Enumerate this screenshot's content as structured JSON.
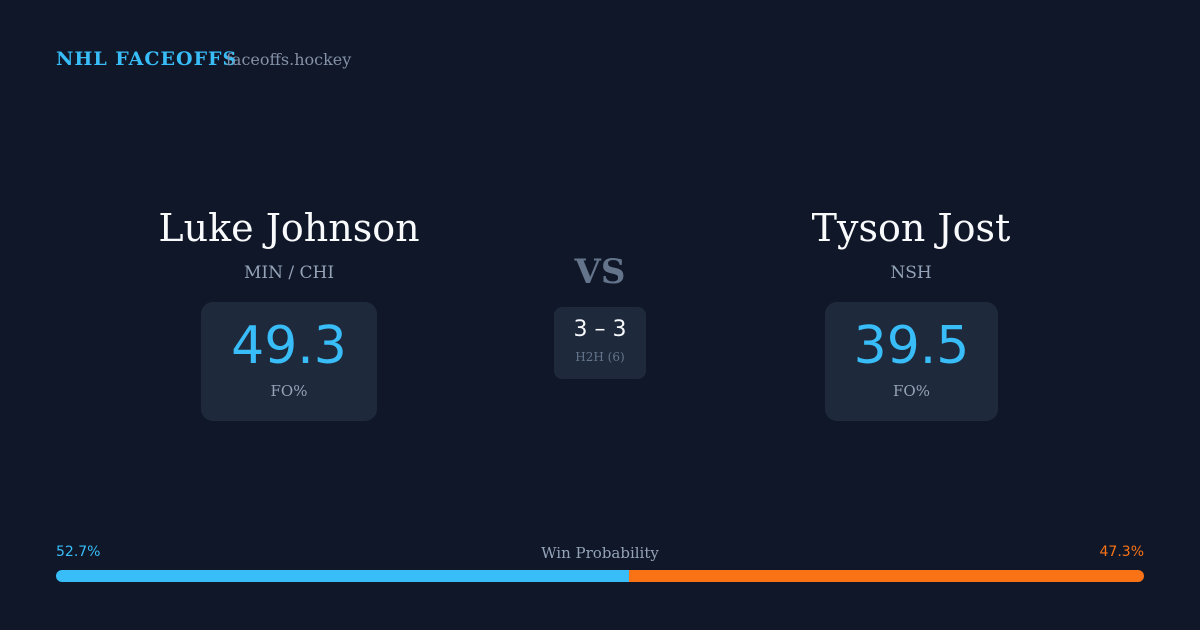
{
  "header": {
    "title": "NHL FACEOFFS",
    "site": "faceoffs.hockey"
  },
  "players": [
    {
      "name": "Luke Johnson",
      "team": "MIN / CHI",
      "stat": 49.3,
      "stat_label": "FO%"
    },
    {
      "name": "Tyson Jost",
      "team": "NSH",
      "stat": 39.5,
      "stat_label": "FO%"
    }
  ],
  "versus": {
    "label": "VS",
    "record": "3 – 3",
    "record_label": "H2H (6)"
  },
  "win_probability": {
    "label": "Win Probability",
    "left": {
      "value": 52.7,
      "label": "52.7%",
      "color": "#38bdf8"
    },
    "right": {
      "value": 47.3,
      "label": "47.3%",
      "color": "#f97316"
    }
  }
}
